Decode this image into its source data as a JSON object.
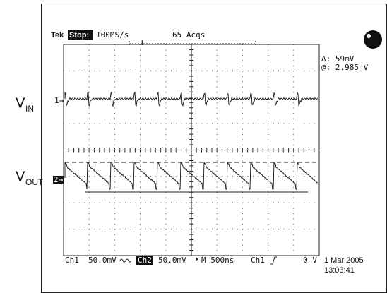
{
  "header": {
    "brand": "Tek",
    "state": "Stop:",
    "sample_rate": "100MS/s",
    "acquisitions": "65 Acqs",
    "trigger_marker": "T"
  },
  "readout": {
    "delta": "Δ: 59mV",
    "at": "@: 2.985 V"
  },
  "labels": {
    "vin_main": "V",
    "vin_sub": "IN",
    "vout_main": "V",
    "vout_sub": "OUT"
  },
  "markers": {
    "ch1": "1→",
    "ch2": "2→"
  },
  "footer": {
    "ch1": "Ch1",
    "ch1_scale": "50.0mV",
    "ch2": "Ch2",
    "ch2_scale": "50.0mV",
    "timebase": "M 500ns",
    "trigger_source": "Ch1",
    "trigger_level": "0 V",
    "date": "1 Mar 2005",
    "time": "13:03:41"
  }
}
